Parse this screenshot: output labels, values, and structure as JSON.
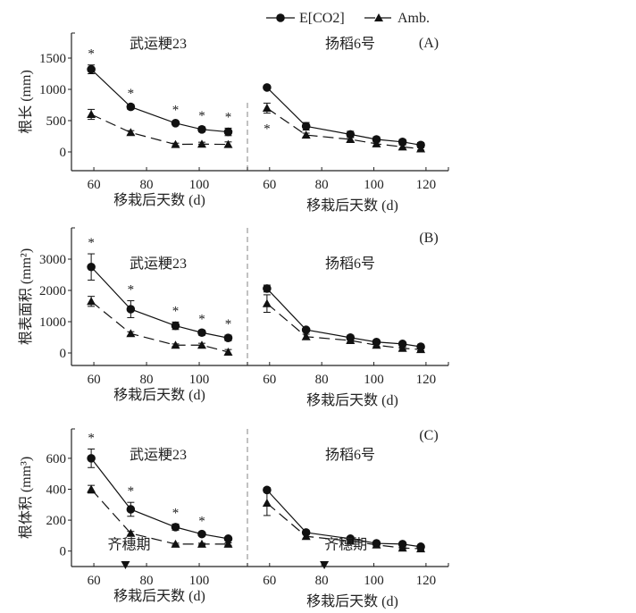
{
  "legend": {
    "position": "top-center",
    "entries": [
      {
        "name": "E[CO2]",
        "marker": "circle",
        "line": "solid"
      },
      {
        "name": "Amb.",
        "marker": "triangle",
        "line": "dashed"
      }
    ]
  },
  "chart_data": [
    {
      "type": "line",
      "panel_label": "(A)",
      "ylabel": "根长 (mm)",
      "ylim": [
        -300,
        1900
      ],
      "yticks": [
        0,
        500,
        1000,
        1500
      ],
      "groups": [
        {
          "title": "武运粳23",
          "xlabel": "移栽后天数 (d)",
          "xlim": [
            51.5,
            118.3
          ],
          "xticks": [
            60,
            80,
            100
          ],
          "series": [
            {
              "name": "E[CO2]",
              "x": [
                59,
                74,
                91,
                101,
                111
              ],
              "y": [
                1320,
                720,
                460,
                360,
                320
              ],
              "err": [
                70,
                40,
                30,
                40,
                60
              ]
            },
            {
              "name": "Amb.",
              "x": [
                59,
                74,
                91,
                101,
                111
              ],
              "y": [
                600,
                310,
                120,
                125,
                120
              ],
              "err": [
                80,
                30,
                20,
                30,
                40
              ]
            }
          ],
          "significance": {
            "symbol": "*",
            "x": [
              59,
              74,
              91,
              101,
              111
            ],
            "position": "above"
          }
        },
        {
          "title": "扬稻6号",
          "xlabel": "移栽后天数 (d)",
          "xlim": [
            51.5,
            128.6
          ],
          "xticks": [
            60,
            80,
            100,
            120
          ],
          "series": [
            {
              "name": "E[CO2]",
              "x": [
                59,
                74,
                91,
                101,
                111,
                118
              ],
              "y": [
                1030,
                410,
                280,
                200,
                160,
                110
              ],
              "err": [
                30,
                60,
                50,
                40,
                40,
                40
              ]
            },
            {
              "name": "Amb.",
              "x": [
                59,
                74,
                91,
                101,
                111,
                118
              ],
              "y": [
                700,
                270,
                200,
                130,
                80,
                50
              ],
              "err": [
                80,
                30,
                30,
                30,
                30,
                20
              ]
            }
          ],
          "significance": {
            "symbol": "*",
            "x": [
              59
            ],
            "position": "below"
          }
        }
      ]
    },
    {
      "type": "line",
      "panel_label": "(B)",
      "ylabel": "根表面积 (mm²)",
      "ylim": [
        -400,
        4000
      ],
      "yticks": [
        0,
        1000,
        2000,
        3000
      ],
      "groups": [
        {
          "title": "武运粳23",
          "xlabel": "移栽后天数 (d)",
          "xlim": [
            51.5,
            118.3
          ],
          "xticks": [
            60,
            80,
            100
          ],
          "series": [
            {
              "name": "E[CO2]",
              "x": [
                59,
                74,
                91,
                101,
                111
              ],
              "y": [
                2750,
                1400,
                870,
                650,
                480
              ],
              "err": [
                420,
                270,
                120,
                80,
                90
              ]
            },
            {
              "name": "Amb.",
              "x": [
                59,
                74,
                91,
                101,
                111
              ],
              "y": [
                1650,
                620,
                250,
                250,
                30
              ],
              "err": [
                160,
                60,
                40,
                60,
                80
              ]
            }
          ],
          "significance": {
            "symbol": "*",
            "x": [
              59,
              74,
              91,
              101,
              111
            ],
            "position": "above"
          }
        },
        {
          "title": "扬稻6号",
          "xlabel": "移栽后天数 (d)",
          "xlim": [
            51.5,
            128.6
          ],
          "xticks": [
            60,
            80,
            100,
            120
          ],
          "series": [
            {
              "name": "E[CO2]",
              "x": [
                59,
                74,
                91,
                101,
                111,
                118
              ],
              "y": [
                2060,
                740,
                490,
                350,
                290,
                200
              ],
              "err": [
                110,
                60,
                80,
                60,
                60,
                60
              ]
            },
            {
              "name": "Amb.",
              "x": [
                59,
                74,
                91,
                101,
                111,
                118
              ],
              "y": [
                1580,
                520,
                400,
                250,
                150,
                110
              ],
              "err": [
                280,
                80,
                50,
                40,
                40,
                40
              ]
            }
          ],
          "significance": {
            "symbol": "*",
            "x": [],
            "position": "above"
          }
        }
      ]
    },
    {
      "type": "line",
      "panel_label": "(C)",
      "ylabel": "根体积 (mm³)",
      "ylim": [
        -100,
        790
      ],
      "yticks": [
        0,
        200,
        400,
        600
      ],
      "groups": [
        {
          "title": "武运粳23",
          "xlabel": "移栽后天数 (d)",
          "xlim": [
            51.5,
            118.3
          ],
          "xticks": [
            60,
            80,
            100
          ],
          "series": [
            {
              "name": "E[CO2]",
              "x": [
                59,
                74,
                91,
                101,
                111
              ],
              "y": [
                600,
                270,
                155,
                110,
                80
              ],
              "err": [
                60,
                45,
                20,
                12,
                12
              ]
            },
            {
              "name": "Amb.",
              "x": [
                59,
                74,
                91,
                101,
                111
              ],
              "y": [
                400,
                115,
                45,
                45,
                45
              ],
              "err": [
                25,
                12,
                6,
                6,
                8
              ]
            }
          ],
          "significance": {
            "symbol": "*",
            "x": [
              59,
              74,
              91,
              101
            ],
            "position": "above"
          },
          "annotation": {
            "text": "齐穗期",
            "x": 72,
            "marker": "down-triangle"
          }
        },
        {
          "title": "扬稻6号",
          "xlabel": "移栽后天数 (d)",
          "xlim": [
            51.5,
            128.6
          ],
          "xticks": [
            60,
            80,
            100,
            120
          ],
          "series": [
            {
              "name": "E[CO2]",
              "x": [
                59,
                74,
                91,
                101,
                111,
                118
              ],
              "y": [
                395,
                120,
                80,
                50,
                45,
                28
              ],
              "err": [
                15,
                12,
                12,
                10,
                10,
                8
              ]
            },
            {
              "name": "Amb.",
              "x": [
                59,
                74,
                91,
                101,
                111,
                118
              ],
              "y": [
                310,
                95,
                65,
                40,
                20,
                15
              ],
              "err": [
                80,
                12,
                10,
                8,
                6,
                6
              ]
            }
          ],
          "significance": {
            "symbol": "*",
            "x": [],
            "position": "above"
          },
          "annotation": {
            "text": "齐穗期",
            "x": 81,
            "marker": "down-triangle"
          }
        }
      ]
    }
  ]
}
